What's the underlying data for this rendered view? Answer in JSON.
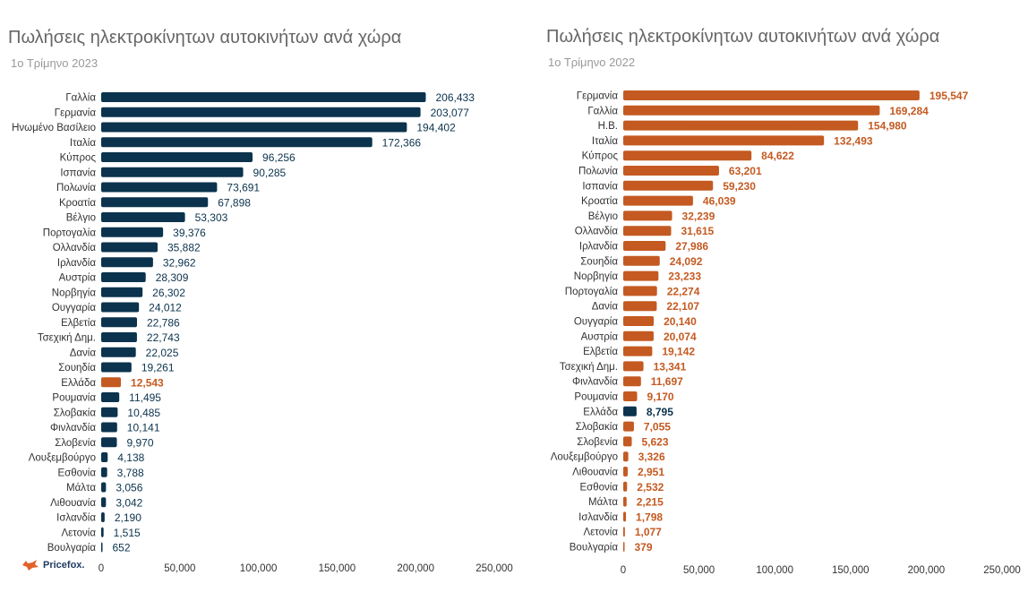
{
  "colors": {
    "navy": "#0b334d",
    "orange": "#c45a21",
    "axis_text": "#333333",
    "tick": "#666666"
  },
  "logo": {
    "text": "Pricefox."
  },
  "chart_data": [
    {
      "type": "bar",
      "orientation": "horizontal",
      "title": "Πωλήσεις ηλεκτροκίνητων αυτοκινήτων ανά χώρα",
      "subtitle": "1ο Τρίμηνο 2023",
      "xlim": [
        0,
        250000
      ],
      "xticks": [
        0,
        50000,
        100000,
        150000,
        200000,
        250000
      ],
      "xtick_labels": [
        "0",
        "50,000",
        "100,000",
        "150,000",
        "200,000",
        "250,000"
      ],
      "default_color": "#0b334d",
      "highlight_color": "#c45a21",
      "highlight": "Ελλάδα",
      "categories": [
        "Γαλλία",
        "Γερμανία",
        "Ηνωμένο Βασίλειο",
        "Ιταλία",
        "Κύπρος",
        "Ισπανία",
        "Πολωνία",
        "Κροατία",
        "Βέλγιο",
        "Πορτογαλία",
        "Ολλανδία",
        "Ιρλανδία",
        "Αυστρία",
        "Νορβηγία",
        "Ουγγαρία",
        "Ελβετία",
        "Τσεχική Δημ.",
        "Δανία",
        "Σουηδία",
        "Ελλάδα",
        "Ρουμανία",
        "Σλοβακία",
        "Φινλανδία",
        "Σλοβενία",
        "Λουξεμβούργο",
        "Εσθονία",
        "Μάλτα",
        "Λιθουανία",
        "Ισλανδία",
        "Λετονία",
        "Βουλγαρία"
      ],
      "values": [
        206433,
        203077,
        194402,
        172366,
        96256,
        90285,
        73691,
        67898,
        53303,
        39376,
        35882,
        32962,
        28309,
        26302,
        24012,
        22786,
        22743,
        22025,
        19261,
        12543,
        11495,
        10485,
        10141,
        9970,
        4138,
        3788,
        3056,
        3042,
        2190,
        1515,
        652
      ],
      "value_labels": [
        "206,433",
        "203,077",
        "194,402",
        "172,366",
        "96,256",
        "90,285",
        "73,691",
        "67,898",
        "53,303",
        "39,376",
        "35,882",
        "32,962",
        "28,309",
        "26,302",
        "24,012",
        "22,786",
        "22,743",
        "22,025",
        "19,261",
        "12,543",
        "11,495",
        "10,485",
        "10,141",
        "9,970",
        "4,138",
        "3,788",
        "3,056",
        "3,042",
        "2,190",
        "1,515",
        "652"
      ]
    },
    {
      "type": "bar",
      "orientation": "horizontal",
      "title": "Πωλήσεις ηλεκτροκίνητων αυτοκινήτων ανά χώρα",
      "subtitle": "1ο Τρίμηνο 2022",
      "xlim": [
        0,
        250000
      ],
      "xticks": [
        0,
        50000,
        100000,
        150000,
        200000,
        250000
      ],
      "xtick_labels": [
        "0",
        "50,000",
        "100,000",
        "150,000",
        "200,000",
        "250,000"
      ],
      "default_color": "#c45a21",
      "highlight_color": "#0b334d",
      "highlight": "Ελλάδα",
      "categories": [
        "Γερμανία",
        "Γαλλία",
        "Η.Β.",
        "Ιταλία",
        "Κύπρος",
        "Πολωνία",
        "Ισπανία",
        "Κροατία",
        "Βέλγιο",
        "Ολλανδία",
        "Ιρλανδία",
        "Σουηδία",
        "Νορβηγία",
        "Πορτογαλία",
        "Δανία",
        "Ουγγαρία",
        "Αυστρία",
        "Ελβετία",
        "Τσεχική Δημ.",
        "Φινλανδία",
        "Ρουμανία",
        "Ελλάδα",
        "Σλοβακία",
        "Σλοβενία",
        "Λουξεμβούργο",
        "Λιθουανία",
        "Εσθονία",
        "Μάλτα",
        "Ισλανδία",
        "Λετονία",
        "Βουλγαρία"
      ],
      "values": [
        195547,
        169284,
        154980,
        132493,
        84622,
        63201,
        59230,
        46039,
        32239,
        31615,
        27986,
        24092,
        23233,
        22274,
        22107,
        20140,
        20074,
        19142,
        13341,
        11697,
        9170,
        8795,
        7055,
        5623,
        3326,
        2951,
        2532,
        2215,
        1798,
        1077,
        379
      ],
      "value_labels": [
        "195,547",
        "169,284",
        "154,980",
        "132,493",
        "84,622",
        "63,201",
        "59,230",
        "46,039",
        "32,239",
        "31,615",
        "27,986",
        "24,092",
        "23,233",
        "22,274",
        "22,107",
        "20,140",
        "20,074",
        "19,142",
        "13,341",
        "11,697",
        "9,170",
        "8,795",
        "7,055",
        "5,623",
        "3,326",
        "2,951",
        "2,532",
        "2,215",
        "1,798",
        "1,077",
        "379"
      ]
    }
  ]
}
